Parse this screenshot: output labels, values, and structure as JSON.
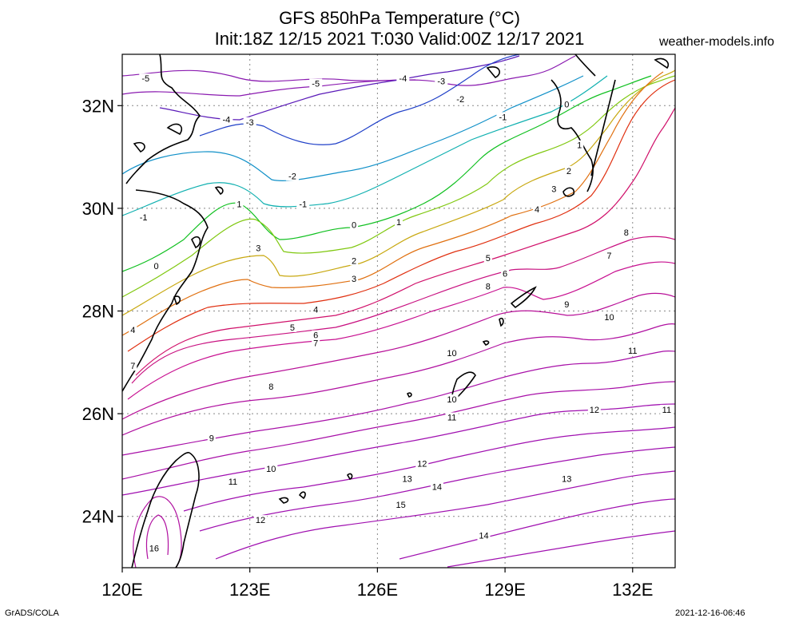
{
  "header": {
    "title_line1": "GFS 850hPa Temperature (°C)",
    "title_line2": "Init:18Z 12/15 2021 T:030 Valid:00Z 12/17 2021",
    "source": "weather-models.info"
  },
  "footer": {
    "left": "GrADS/COLA",
    "right": "2021-12-16-06:46"
  },
  "map": {
    "lon_range": [
      120,
      133
    ],
    "lat_range": [
      23,
      33
    ],
    "x_ticks": [
      {
        "value": 120,
        "label": "120E"
      },
      {
        "value": 123,
        "label": "123E"
      },
      {
        "value": 126,
        "label": "126E"
      },
      {
        "value": 129,
        "label": "129E"
      },
      {
        "value": 132,
        "label": "132E"
      }
    ],
    "y_ticks": [
      {
        "value": 24,
        "label": "24N"
      },
      {
        "value": 26,
        "label": "26N"
      },
      {
        "value": 28,
        "label": "28N"
      },
      {
        "value": 30,
        "label": "30N"
      },
      {
        "value": 32,
        "label": "32N"
      }
    ],
    "grid": true,
    "contour_labels": [
      {
        "t": "-5",
        "lon": 120.55,
        "lat": 32.5
      },
      {
        "t": "-5",
        "lon": 124.55,
        "lat": 32.4
      },
      {
        "t": "-4",
        "lon": 126.6,
        "lat": 32.5
      },
      {
        "t": "-3",
        "lon": 127.5,
        "lat": 32.45
      },
      {
        "t": "-2",
        "lon": 127.95,
        "lat": 32.1
      },
      {
        "t": "-1",
        "lon": 128.95,
        "lat": 31.75
      },
      {
        "t": "0",
        "lon": 130.45,
        "lat": 32.0
      },
      {
        "t": "-4",
        "lon": 122.45,
        "lat": 31.7
      },
      {
        "t": "-3",
        "lon": 123.0,
        "lat": 31.65
      },
      {
        "t": "-2",
        "lon": 124.0,
        "lat": 30.6
      },
      {
        "t": "-1",
        "lon": 124.25,
        "lat": 30.05
      },
      {
        "t": "-1",
        "lon": 120.5,
        "lat": 29.8
      },
      {
        "t": "1",
        "lon": 122.75,
        "lat": 30.05
      },
      {
        "t": "0",
        "lon": 125.45,
        "lat": 29.65
      },
      {
        "t": "1",
        "lon": 126.5,
        "lat": 29.7
      },
      {
        "t": "1",
        "lon": 130.75,
        "lat": 31.2
      },
      {
        "t": "2",
        "lon": 130.5,
        "lat": 30.7
      },
      {
        "t": "3",
        "lon": 130.15,
        "lat": 30.35
      },
      {
        "t": "4",
        "lon": 129.75,
        "lat": 29.95
      },
      {
        "t": "0",
        "lon": 120.8,
        "lat": 28.85
      },
      {
        "t": "3",
        "lon": 123.2,
        "lat": 29.2
      },
      {
        "t": "2",
        "lon": 125.45,
        "lat": 28.95
      },
      {
        "t": "3",
        "lon": 125.45,
        "lat": 28.6
      },
      {
        "t": "5",
        "lon": 128.6,
        "lat": 29.0
      },
      {
        "t": "6",
        "lon": 129.0,
        "lat": 28.7
      },
      {
        "t": "7",
        "lon": 131.45,
        "lat": 29.05
      },
      {
        "t": "8",
        "lon": 131.85,
        "lat": 29.5
      },
      {
        "t": "8",
        "lon": 128.6,
        "lat": 28.45
      },
      {
        "t": "9",
        "lon": 130.45,
        "lat": 28.1
      },
      {
        "t": "4",
        "lon": 124.55,
        "lat": 28.0
      },
      {
        "t": "4",
        "lon": 120.25,
        "lat": 27.6
      },
      {
        "t": "5",
        "lon": 124.0,
        "lat": 27.65
      },
      {
        "t": "6",
        "lon": 124.55,
        "lat": 27.5
      },
      {
        "t": "7",
        "lon": 124.55,
        "lat": 27.35
      },
      {
        "t": "10",
        "lon": 131.45,
        "lat": 27.85
      },
      {
        "t": "11",
        "lon": 132.0,
        "lat": 27.2
      },
      {
        "t": "10",
        "lon": 127.75,
        "lat": 27.15
      },
      {
        "t": "7",
        "lon": 120.25,
        "lat": 26.9
      },
      {
        "t": "8",
        "lon": 123.5,
        "lat": 26.5
      },
      {
        "t": "10",
        "lon": 127.75,
        "lat": 26.25
      },
      {
        "t": "11",
        "lon": 127.75,
        "lat": 25.9
      },
      {
        "t": "12",
        "lon": 131.1,
        "lat": 26.05
      },
      {
        "t": "11",
        "lon": 132.8,
        "lat": 26.05
      },
      {
        "t": "9",
        "lon": 122.1,
        "lat": 25.5
      },
      {
        "t": "10",
        "lon": 123.5,
        "lat": 24.9
      },
      {
        "t": "12",
        "lon": 127.05,
        "lat": 25.0
      },
      {
        "t": "13",
        "lon": 126.7,
        "lat": 24.7
      },
      {
        "t": "14",
        "lon": 127.4,
        "lat": 24.55
      },
      {
        "t": "13",
        "lon": 130.45,
        "lat": 24.7
      },
      {
        "t": "11",
        "lon": 122.6,
        "lat": 24.65
      },
      {
        "t": "15",
        "lon": 126.55,
        "lat": 24.2
      },
      {
        "t": "12",
        "lon": 123.25,
        "lat": 23.9
      },
      {
        "t": "14",
        "lon": 128.5,
        "lat": 23.6
      },
      {
        "t": "16",
        "lon": 120.75,
        "lat": 23.35
      }
    ]
  }
}
